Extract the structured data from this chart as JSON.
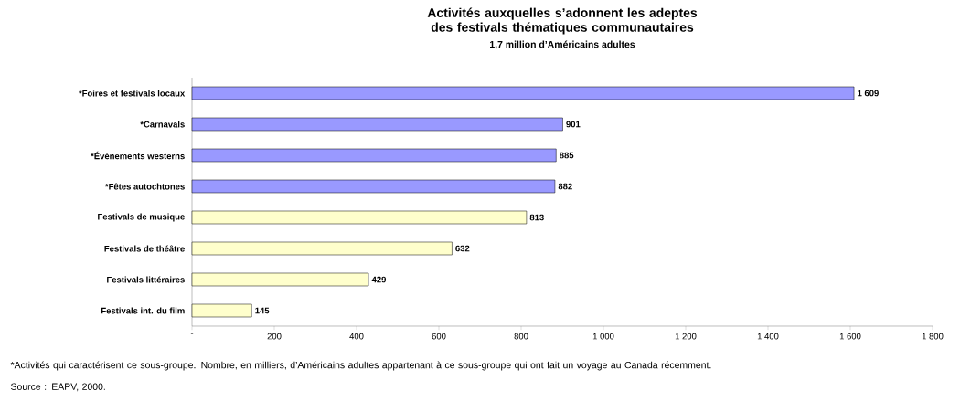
{
  "chart_data": {
    "type": "bar",
    "orientation": "horizontal",
    "title": "Activités auxquelles s’adonnent les adeptes des festivals thématiques communautaires",
    "subtitle": "1,7 million d’Américains adultes",
    "categories": [
      "*Foires et festivals locaux",
      "*Carnavals",
      "*Événements westerns",
      "*Fêtes autochtones",
      "Festivals de musique",
      "Festivals de théâtre",
      "Festivals littéraires",
      "Festivals int. du film"
    ],
    "values": [
      1609,
      901,
      885,
      882,
      813,
      632,
      429,
      145
    ],
    "value_labels": [
      "1 609",
      "901",
      "885",
      "882",
      "813",
      "632",
      "429",
      "145"
    ],
    "colors": [
      "#9999ff",
      "#9999ff",
      "#9999ff",
      "#9999ff",
      "#ffffcc",
      "#ffffcc",
      "#ffffcc",
      "#ffffcc"
    ],
    "xlim": [
      0,
      1800
    ],
    "xticks": [
      {
        "value": 0,
        "label": "-"
      },
      200,
      400,
      600,
      800,
      {
        "value": 1000,
        "label": "1 000"
      },
      {
        "value": 1200,
        "label": "1 200"
      },
      {
        "value": 1400,
        "label": "1 400"
      },
      {
        "value": 1600,
        "label": "1 600"
      },
      {
        "value": 1800,
        "label": "1 800"
      }
    ],
    "grid": false,
    "annotations": [
      "*Activités qui caractérisent ce sous-groupe. Nombre, en milliers, d’Américains adultes appartenant à ce sous-groupe qui ont fait un voyage au Canada récemment.",
      "Source : EAPV, 2000."
    ]
  }
}
